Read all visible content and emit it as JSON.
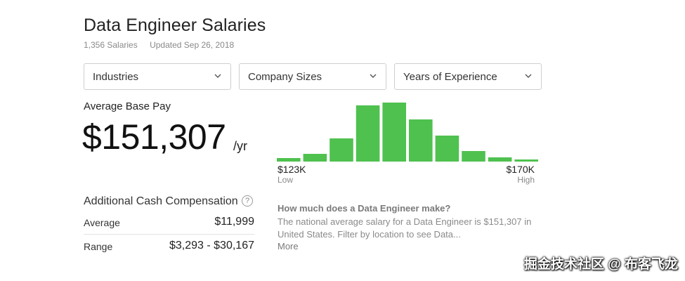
{
  "header": {
    "title": "Data Engineer Salaries",
    "salaries_count": "1,356 Salaries",
    "updated": "Updated Sep 26, 2018"
  },
  "filters": [
    {
      "label": "Industries"
    },
    {
      "label": "Company Sizes"
    },
    {
      "label": "Years of Experience"
    }
  ],
  "average_pay": {
    "label": "Average Base Pay",
    "value": "$151,307",
    "unit": "/yr"
  },
  "chart_data": {
    "type": "bar",
    "x_low_label": "$123K",
    "x_low_sub": "Low",
    "x_high_label": "$170K",
    "x_high_sub": "High",
    "values": [
      5,
      11,
      33,
      80,
      84,
      60,
      37,
      15,
      6,
      3
    ],
    "ylim": [
      0,
      90
    ],
    "bar_color": "#4fc14f"
  },
  "additional_cash": {
    "title": "Additional Cash Compensation",
    "help_icon": "?",
    "rows": [
      {
        "label": "Average",
        "value": "$11,999"
      },
      {
        "label": "Range",
        "value": "$3,293 - $30,167"
      }
    ]
  },
  "faq": {
    "question": "How much does a Data Engineer make?",
    "answer": "The national average salary for a Data Engineer is $151,307 in United States. Filter by location to see Data...",
    "more": "More"
  },
  "watermark": "掘金技术社区 @ 布客飞龙"
}
